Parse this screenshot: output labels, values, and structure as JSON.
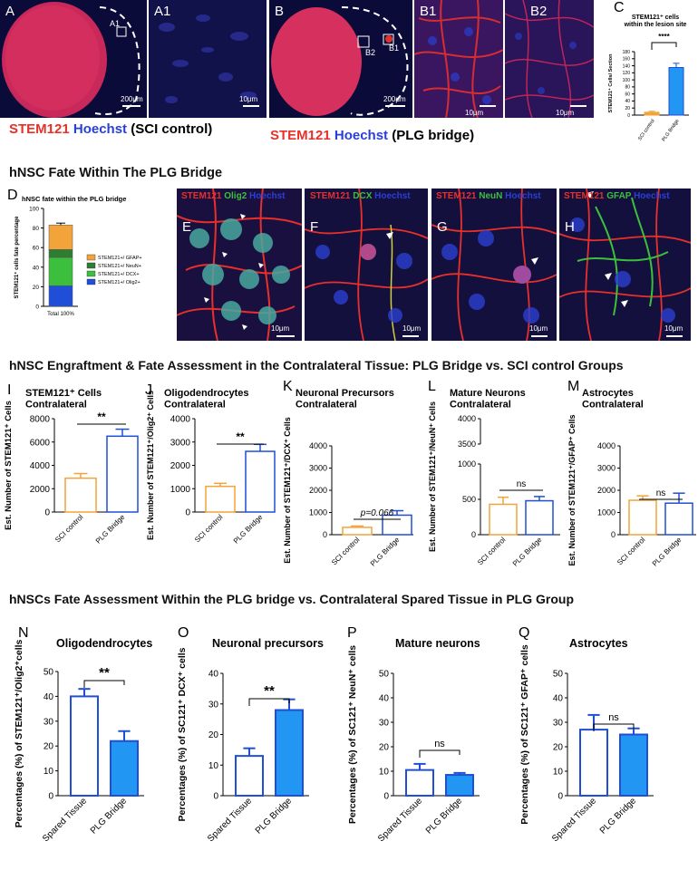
{
  "figure": {
    "panel_letters": {
      "A": "A",
      "A1": "A1",
      "B": "B",
      "B1": "B1",
      "B2": "B2",
      "C": "C",
      "D": "D",
      "E": "E",
      "F": "F",
      "G": "G",
      "H": "H",
      "I": "I",
      "J": "J",
      "K": "K",
      "L": "L",
      "M": "M",
      "N": "N",
      "O": "O",
      "P": "P",
      "Q": "Q"
    },
    "inset_labels": {
      "A1": "A1",
      "B1": "B1",
      "B2": "B2"
    },
    "scale_labels": {
      "s200": "200μm",
      "s10": "10μm"
    },
    "caption_A": {
      "stem": "STEM121",
      "hoechst": "Hoechst",
      "rest": "(SCI control)"
    },
    "caption_B": {
      "stem": "STEM121",
      "hoechst": "Hoechst",
      "rest": "(PLG bridge)"
    },
    "section1_title": "hNSC Fate Within The PLG Bridge",
    "section2_title": "hNSC Engraftment & Fate Assessment in the Contralateral Tissue: PLG Bridge vs. SCI control Groups",
    "section3_title": "hNSCs Fate Assessment Within the PLG bridge vs. Contralateral Spared Tissue in PLG Group",
    "stains": {
      "E": [
        "STEM121",
        "Olig2",
        "Hoechst"
      ],
      "F": [
        "STEM121",
        "DCX",
        "Hoechst"
      ],
      "G": [
        "STEM121",
        "NeuN",
        "Hoechst"
      ],
      "H": [
        "STEM121",
        "GFAP",
        "Hoechst"
      ]
    },
    "colors": {
      "orange": "#f2a33a",
      "blue": "#1f4fd6",
      "red": "#e8302a",
      "lightblue": "#2196f3",
      "green": "#3cbf3c",
      "darkgreen": "#2e7d32",
      "navy": "#0a0a35"
    }
  },
  "chart_data": [
    {
      "id": "C",
      "type": "bar",
      "title": "STEM121⁺ cells within the lesion site",
      "ylabel": "STEM121⁺ Cells/ Section",
      "categories": [
        "SCI control",
        "PLG Bridge"
      ],
      "values": [
        8,
        135
      ],
      "errors": [
        3,
        12
      ],
      "ylim": [
        0,
        180
      ],
      "yticks": [
        "0",
        "20",
        "40",
        "60",
        "80",
        "100",
        "120",
        "140",
        "160",
        "180"
      ],
      "significance": "****"
    },
    {
      "id": "D",
      "type": "bar",
      "title": "hNSC fate within the PLG bridge",
      "ylabel": "STEM121⁺ cells fate percentage",
      "categories": [
        "Total  100%"
      ],
      "yticks": [
        "0",
        "20",
        "40",
        "60",
        "80",
        "100"
      ],
      "ylim": [
        0,
        100
      ],
      "series": [
        {
          "name": "STEM121+/ Olig2+",
          "value": 21
        },
        {
          "name": "STEM121+/ DCX+",
          "value": 29
        },
        {
          "name": "STEM121+/ NeuN+",
          "value": 8
        },
        {
          "name": "STEM121+/ GFAP+",
          "value": 25
        }
      ],
      "legend": [
        "STEM121+/ GFAP+",
        "STEM121+/ NeuN+",
        "STEM121+/ DCX+",
        "STEM121+/ Olig2+"
      ]
    },
    {
      "id": "I",
      "type": "bar",
      "title": "STEM121⁺ Cells Contralateral",
      "ylabel": "Est. Number of STEM121⁺ Cells",
      "categories": [
        "SCI control",
        "PLG Bridge"
      ],
      "values": [
        2900,
        6500
      ],
      "errors": [
        400,
        600
      ],
      "ylim": [
        0,
        8000
      ],
      "yticks": [
        "0",
        "2000",
        "4000",
        "6000",
        "8000"
      ],
      "significance": "**"
    },
    {
      "id": "J",
      "type": "bar",
      "title": "Oligodendrocytes Contralateral",
      "ylabel": "Est. Number of STEM121⁺/Olig2⁺ Cells",
      "categories": [
        "SCI control",
        "PLG Bridge"
      ],
      "values": [
        1100,
        2600
      ],
      "errors": [
        130,
        300
      ],
      "ylim": [
        0,
        4000
      ],
      "yticks": [
        "0",
        "1000",
        "2000",
        "3000",
        "4000"
      ],
      "significance": "**"
    },
    {
      "id": "K",
      "type": "bar",
      "title": "Neuronal Precursors Contralateral",
      "ylabel": "Est. Number of STEM121⁺/DCX⁺ Cells",
      "categories": [
        "SCI control",
        "PLG Bridge"
      ],
      "values": [
        330,
        880
      ],
      "errors": [
        60,
        200
      ],
      "ylim": [
        0,
        4000
      ],
      "yticks": [
        "0",
        "1000",
        "2000",
        "3000",
        "4000"
      ],
      "significance": "p=0.066"
    },
    {
      "id": "L",
      "type": "bar",
      "title": "Mature Neurons Contralateral",
      "ylabel": "Est. Number of STEM121⁺/NeuN⁺ Cells",
      "categories": [
        "SCI control",
        "PLG Bridge"
      ],
      "values": [
        430,
        480
      ],
      "errors": [
        100,
        60
      ],
      "yticks": [
        "0",
        "500",
        "1000",
        "3500",
        "4000"
      ],
      "axis_break": true,
      "significance": "ns"
    },
    {
      "id": "M",
      "type": "bar",
      "title": "Astrocytes Contralateral",
      "ylabel": "Est. Number of STEM121⁺/GFAP⁺ Cells",
      "categories": [
        "SCI control",
        "PLG Bridge"
      ],
      "values": [
        1550,
        1420
      ],
      "errors": [
        200,
        450
      ],
      "ylim": [
        0,
        4000
      ],
      "yticks": [
        "0",
        "1000",
        "2000",
        "3000",
        "4000"
      ],
      "significance": "ns"
    },
    {
      "id": "N",
      "type": "bar",
      "title": "Oligodendrocytes",
      "ylabel": "Percentages (%) of STEM121⁺/Olig2⁺cells",
      "categories": [
        "Spared Tissue",
        "PLG Bridge"
      ],
      "values": [
        40,
        22
      ],
      "errors": [
        3,
        4
      ],
      "ylim": [
        0,
        50
      ],
      "yticks": [
        "0",
        "10",
        "20",
        "30",
        "40",
        "50"
      ],
      "significance": "**"
    },
    {
      "id": "O",
      "type": "bar",
      "title": "Neuronal precursors",
      "ylabel": "Percentages (%) of SC121⁺ DCX⁺ cells",
      "categories": [
        "Spared Tissue",
        "PLG Bridge"
      ],
      "values": [
        13,
        28
      ],
      "errors": [
        2.5,
        3.5
      ],
      "ylim": [
        0,
        40
      ],
      "yticks": [
        "0",
        "10",
        "20",
        "30",
        "40"
      ],
      "significance": "**"
    },
    {
      "id": "P",
      "type": "bar",
      "title": "Mature neurons",
      "ylabel": "Percentages (%) of SC121⁺ NeuN⁺ cells",
      "categories": [
        "Spared Tissue",
        "PLG Bridge"
      ],
      "values": [
        10.5,
        8.5
      ],
      "errors": [
        2.5,
        0.8
      ],
      "ylim": [
        0,
        50
      ],
      "yticks": [
        "0",
        "10",
        "20",
        "30",
        "40",
        "50"
      ],
      "significance": "ns"
    },
    {
      "id": "Q",
      "type": "bar",
      "title": "Astrocytes",
      "ylabel": "Percentages (%) of SC121⁺ GFAP⁺ cells",
      "categories": [
        "Spared Tissue",
        "PLG Bridge"
      ],
      "values": [
        27,
        25
      ],
      "errors": [
        6,
        2.5
      ],
      "ylim": [
        0,
        50
      ],
      "yticks": [
        "0",
        "10",
        "20",
        "30",
        "40",
        "50"
      ],
      "significance": "ns"
    }
  ]
}
